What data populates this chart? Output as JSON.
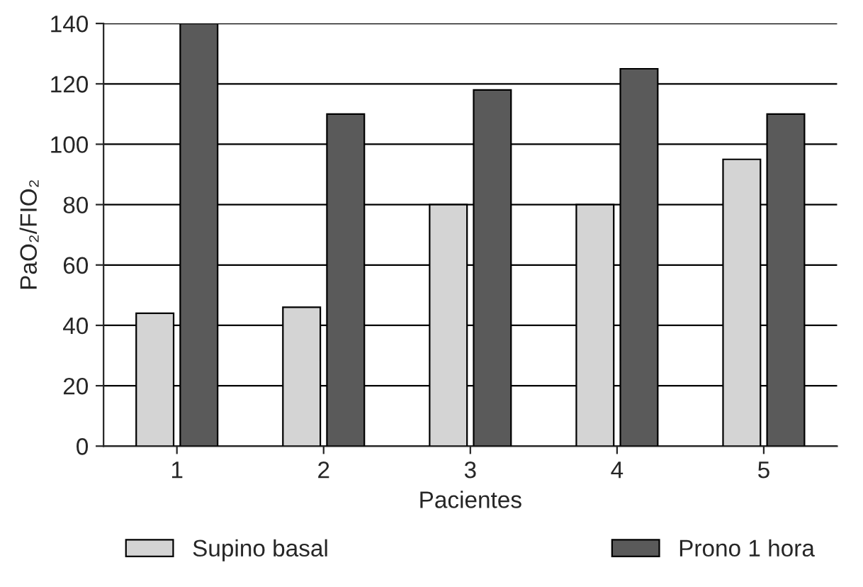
{
  "chart_data": {
    "type": "bar",
    "xlabel": "Pacientes",
    "ylabel": "PaO₂/FIO₂",
    "categories": [
      "1",
      "2",
      "3",
      "4",
      "5"
    ],
    "series": [
      {
        "name": "Supino basal",
        "color": "#d4d4d4",
        "values": [
          44,
          46,
          80,
          80,
          95
        ]
      },
      {
        "name": "Prono 1 hora",
        "color": "#5a5a5a",
        "values": [
          140,
          110,
          118,
          125,
          110
        ]
      }
    ],
    "ylim": [
      0,
      140
    ],
    "yticks": [
      0,
      20,
      40,
      60,
      80,
      100,
      120,
      140
    ],
    "grid": "y",
    "legend": "bottom"
  }
}
